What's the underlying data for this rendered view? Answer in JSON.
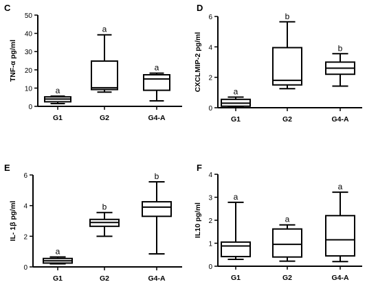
{
  "chart_data": [
    {
      "type": "box",
      "panel_label": "C",
      "ylabel": "TNF-α pg/ml",
      "xlabel": "",
      "categories": [
        "G1",
        "G2",
        "G4-A"
      ],
      "yticks": [
        "0",
        "10",
        "20",
        "30",
        "40",
        "50"
      ],
      "ylim": [
        0,
        50
      ],
      "boxes": [
        {
          "min": 1.5,
          "q1": 2.5,
          "median": 4.0,
          "q3": 5.2,
          "max": 5.6,
          "letter": "a"
        },
        {
          "min": 7.8,
          "q1": 9.2,
          "median": 10.2,
          "q3": 24.8,
          "max": 39.2,
          "letter": "a"
        },
        {
          "min": 3.0,
          "q1": 8.8,
          "median": 15.0,
          "q3": 17.3,
          "max": 18.2,
          "letter": "a"
        }
      ]
    },
    {
      "type": "box",
      "panel_label": "D",
      "ylabel": "CXCLMIP-2 pg/ml",
      "xlabel": "",
      "categories": [
        "G1",
        "G2",
        "G4-A"
      ],
      "yticks": [
        "0",
        "2",
        "4",
        "6"
      ],
      "ylim": [
        0,
        6
      ],
      "boxes": [
        {
          "min": 0.05,
          "q1": 0.1,
          "median": 0.3,
          "q3": 0.55,
          "max": 0.7,
          "letter": "a"
        },
        {
          "min": 1.25,
          "q1": 1.5,
          "median": 1.8,
          "q3": 3.95,
          "max": 5.65,
          "letter": "b"
        },
        {
          "min": 1.42,
          "q1": 2.2,
          "median": 2.6,
          "q3": 3.0,
          "max": 3.55,
          "letter": "b"
        }
      ]
    },
    {
      "type": "box",
      "panel_label": "E",
      "ylabel": "IL- 1β pg/ml",
      "xlabel": "",
      "categories": [
        "G1",
        "G2",
        "G4-A"
      ],
      "yticks": [
        "0",
        "2",
        "4",
        "6"
      ],
      "ylim": [
        0,
        6
      ],
      "boxes": [
        {
          "min": 0.2,
          "q1": 0.25,
          "median": 0.4,
          "q3": 0.55,
          "max": 0.65,
          "letter": "a"
        },
        {
          "min": 2.0,
          "q1": 2.65,
          "median": 2.9,
          "q3": 3.1,
          "max": 3.55,
          "letter": "b"
        },
        {
          "min": 0.85,
          "q1": 3.3,
          "median": 3.9,
          "q3": 4.25,
          "max": 5.55,
          "letter": "b"
        }
      ]
    },
    {
      "type": "box",
      "panel_label": "F",
      "ylabel": "IL10 pg/ml",
      "xlabel": "",
      "categories": [
        "G1",
        "G2",
        "G4-A"
      ],
      "yticks": [
        "0",
        "1",
        "2",
        "3",
        "4"
      ],
      "ylim": [
        0,
        4
      ],
      "boxes": [
        {
          "min": 0.3,
          "q1": 0.42,
          "median": 0.88,
          "q3": 1.05,
          "max": 2.78,
          "letter": "a"
        },
        {
          "min": 0.22,
          "q1": 0.4,
          "median": 0.95,
          "q3": 1.62,
          "max": 1.8,
          "letter": "a"
        },
        {
          "min": 0.2,
          "q1": 0.45,
          "median": 1.15,
          "q3": 2.2,
          "max": 3.22,
          "letter": "a"
        }
      ]
    }
  ]
}
